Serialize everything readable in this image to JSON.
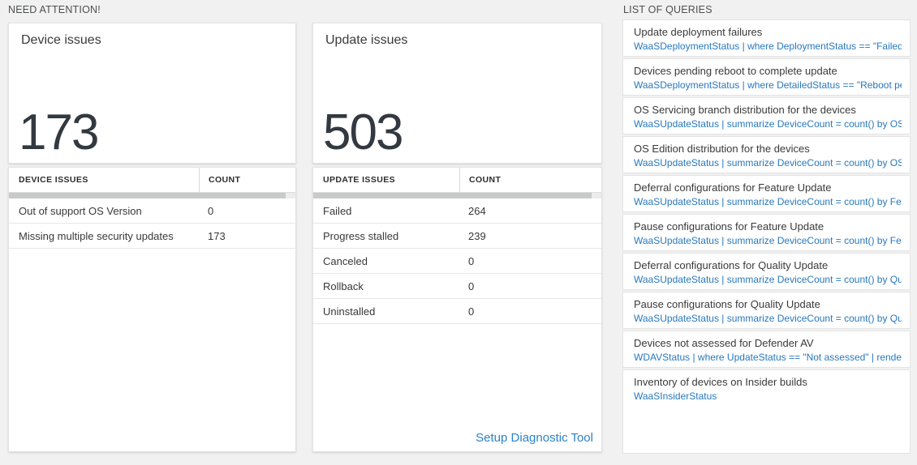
{
  "need_attention": {
    "header": "NEED ATTENTION!",
    "device_card": {
      "title": "Device issues",
      "count": "173"
    },
    "device_table": {
      "columns": [
        "DEVICE ISSUES",
        "COUNT"
      ],
      "rows": [
        {
          "label": "Out of support OS Version",
          "count": "0"
        },
        {
          "label": "Missing multiple security updates",
          "count": "173"
        }
      ]
    },
    "update_card": {
      "title": "Update issues",
      "count": "503"
    },
    "update_table": {
      "columns": [
        "UPDATE ISSUES",
        "COUNT"
      ],
      "rows": [
        {
          "label": "Failed",
          "count": "264"
        },
        {
          "label": "Progress stalled",
          "count": "239"
        },
        {
          "label": "Canceled",
          "count": "0"
        },
        {
          "label": "Rollback",
          "count": "0"
        },
        {
          "label": "Uninstalled",
          "count": "0"
        }
      ],
      "footer_link": "Setup Diagnostic Tool"
    }
  },
  "queries": {
    "header": "LIST OF QUERIES",
    "items": [
      {
        "title": "Update deployment failures",
        "query": "WaaSDeploymentStatus | where DeploymentStatus == \"Failed\" |..."
      },
      {
        "title": "Devices pending reboot to complete update",
        "query": "WaaSDeploymentStatus | where DetailedStatus == \"Reboot pend..."
      },
      {
        "title": "OS Servicing branch distribution for the devices",
        "query": "WaaSUpdateStatus | summarize DeviceCount = count() by OSSer..."
      },
      {
        "title": "OS Edition distribution for the devices",
        "query": "WaaSUpdateStatus | summarize DeviceCount = count() by OSEdit..."
      },
      {
        "title": "Deferral configurations for Feature Update",
        "query": "WaaSUpdateStatus | summarize DeviceCount = count() by Featur..."
      },
      {
        "title": "Pause configurations for Feature Update",
        "query": "WaaSUpdateStatus | summarize DeviceCount = count() by Featur..."
      },
      {
        "title": "Deferral configurations for Quality Update",
        "query": "WaaSUpdateStatus | summarize DeviceCount = count() by Qualit..."
      },
      {
        "title": "Pause configurations for Quality Update",
        "query": "WaaSUpdateStatus | summarize DeviceCount = count() by Qualit..."
      },
      {
        "title": "Devices not assessed for Defender AV",
        "query": "WDAVStatus | where UpdateStatus == \"Not assessed\" | render ta..."
      },
      {
        "title": "Inventory of devices on Insider builds",
        "query": "WaaSInsiderStatus"
      }
    ]
  },
  "colors": {
    "query_blue": "#2878be",
    "link_blue": "#2b83c9",
    "big_number": "#333940",
    "page_background": "#f1f1f1"
  }
}
